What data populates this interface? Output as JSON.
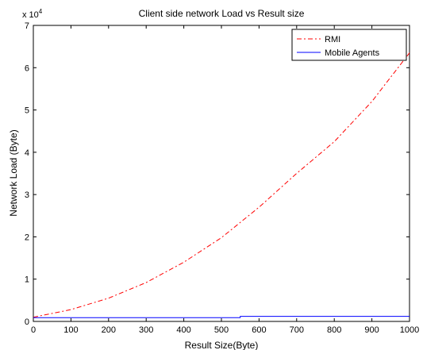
{
  "chart_data": {
    "type": "line",
    "title": "Client side network Load vs Result size",
    "xlabel": "Result Size(Byte)",
    "ylabel": "Network Load (Byte)",
    "y_exponent_base": "x 10",
    "y_exponent_power": "4",
    "xlim": [
      0,
      1000
    ],
    "ylim": [
      0,
      7
    ],
    "x_ticks": [
      0,
      100,
      200,
      300,
      400,
      500,
      600,
      700,
      800,
      900,
      1000
    ],
    "y_ticks": [
      0,
      1,
      2,
      3,
      4,
      5,
      6,
      7
    ],
    "grid": false,
    "legend_position": "top-right",
    "series": [
      {
        "name": "RMI",
        "color": "#ff0000",
        "line_style": "dash-dot",
        "x": [
          0,
          100,
          200,
          300,
          400,
          500,
          600,
          700,
          800,
          900,
          1000
        ],
        "y": [
          0.1,
          0.28,
          0.55,
          0.92,
          1.4,
          1.98,
          2.7,
          3.5,
          4.25,
          5.2,
          6.35
        ]
      },
      {
        "name": "Mobile Agents",
        "color": "#0000ff",
        "line_style": "solid",
        "x": [
          0,
          550,
          550,
          1000
        ],
        "y": [
          0.09,
          0.09,
          0.12,
          0.12
        ]
      }
    ]
  }
}
